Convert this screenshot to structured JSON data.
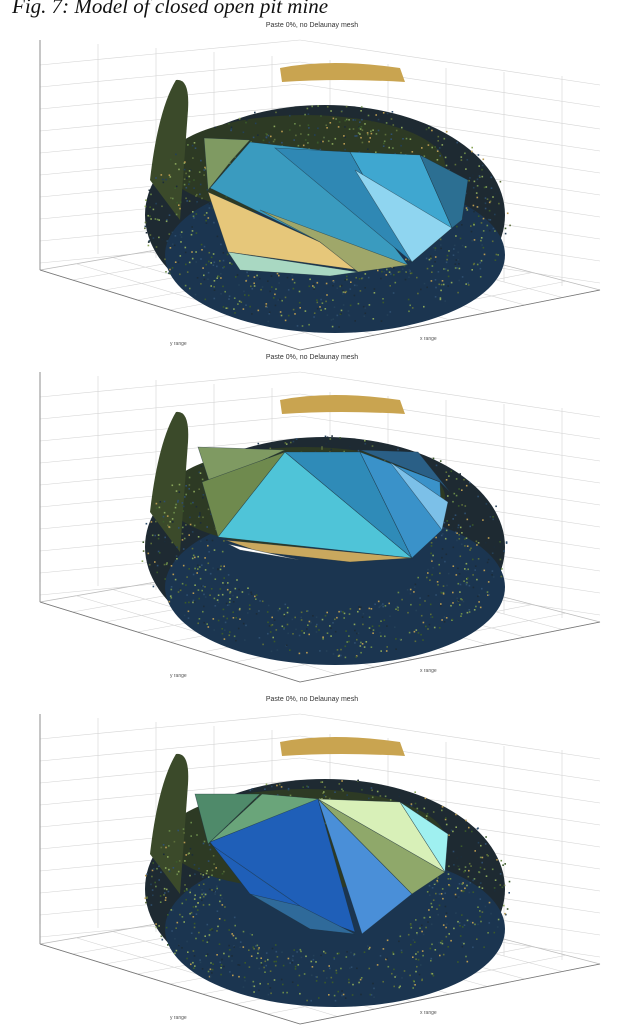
{
  "caption": "Fig. 7: Model of closed open pit mine",
  "figures": [
    {
      "title": "Paste 0%, no Delaunay mesh",
      "zticks": [
        "",
        "",
        "",
        "",
        "",
        "",
        "",
        "",
        "",
        ""
      ],
      "xticks": [
        "",
        "",
        "",
        "",
        "",
        "",
        ""
      ],
      "yticks": [
        "",
        "",
        "",
        "",
        "",
        ""
      ],
      "xlabel": "x range",
      "ylabel": "y range",
      "facets": [
        {
          "fill": "#7f9a62",
          "pts": [
            [
              204,
              118
            ],
            [
              250,
              120
            ],
            [
              232,
              140
            ],
            [
              208,
              170
            ]
          ]
        },
        {
          "fill": "#3a9bbf",
          "pts": [
            [
              210,
              168
            ],
            [
              250,
              122
            ],
            [
              320,
              130
            ],
            [
              408,
              245
            ],
            [
              320,
              222
            ]
          ]
        },
        {
          "fill": "#2f88b4",
          "pts": [
            [
              275,
              128
            ],
            [
              350,
              132
            ],
            [
              412,
              242
            ]
          ]
        },
        {
          "fill": "#3fa7d0",
          "pts": [
            [
              350,
              132
            ],
            [
              420,
              135
            ],
            [
              452,
              208
            ],
            [
              412,
              242
            ]
          ]
        },
        {
          "fill": "#8fd5f0",
          "pts": [
            [
              355,
              150
            ],
            [
              452,
              208
            ],
            [
              412,
              242
            ]
          ]
        },
        {
          "fill": "#2c6f92",
          "pts": [
            [
              420,
              135
            ],
            [
              468,
              160
            ],
            [
              462,
              200
            ],
            [
              452,
              208
            ]
          ]
        },
        {
          "fill": "#e6c77a",
          "pts": [
            [
              208,
              172
            ],
            [
              320,
              222
            ],
            [
              358,
              250
            ],
            [
              228,
              232
            ]
          ]
        },
        {
          "fill": "#9fa76a",
          "pts": [
            [
              260,
              190
            ],
            [
              408,
              245
            ],
            [
              358,
              252
            ],
            [
              320,
              222
            ]
          ]
        },
        {
          "fill": "#a9d8c2",
          "pts": [
            [
              228,
              232
            ],
            [
              358,
              252
            ],
            [
              330,
              256
            ],
            [
              240,
              250
            ]
          ]
        }
      ]
    },
    {
      "title": "Paste 0%, no Delaunay mesh",
      "zticks": [
        "",
        "",
        "",
        "",
        "",
        "",
        "",
        "",
        "",
        ""
      ],
      "xticks": [
        "",
        "",
        "",
        "",
        "",
        "",
        ""
      ],
      "yticks": [
        "",
        "",
        "",
        "",
        "",
        ""
      ],
      "xlabel": "x range",
      "ylabel": "y range",
      "facets": [
        {
          "fill": "#7f9a62",
          "pts": [
            [
              198,
              95
            ],
            [
              285,
              98
            ],
            [
              210,
              132
            ]
          ]
        },
        {
          "fill": "#6f8a4e",
          "pts": [
            [
              202,
              130
            ],
            [
              285,
              100
            ],
            [
              218,
              185
            ]
          ]
        },
        {
          "fill": "#4fc4d8",
          "pts": [
            [
              218,
              185
            ],
            [
              285,
              100
            ],
            [
              412,
              206
            ]
          ]
        },
        {
          "fill": "#2f8bb8",
          "pts": [
            [
              285,
              100
            ],
            [
              360,
              100
            ],
            [
              412,
              206
            ]
          ]
        },
        {
          "fill": "#3a92c9",
          "pts": [
            [
              360,
              100
            ],
            [
              440,
              130
            ],
            [
              442,
              178
            ],
            [
              412,
              206
            ]
          ]
        },
        {
          "fill": "#7cc0e8",
          "pts": [
            [
              390,
              110
            ],
            [
              448,
              150
            ],
            [
              442,
              178
            ]
          ]
        },
        {
          "fill": "#2a5f86",
          "pts": [
            [
              360,
              98
            ],
            [
              418,
              100
            ],
            [
              450,
              140
            ],
            [
              440,
              130
            ]
          ]
        },
        {
          "fill": "#c9a85e",
          "pts": [
            [
              225,
              188
            ],
            [
              412,
              206
            ],
            [
              350,
              210
            ],
            [
              260,
              200
            ]
          ]
        },
        {
          "fill": "#ffffff",
          "pts": [
            [
              228,
              192
            ],
            [
              300,
              208
            ],
            [
              240,
              198
            ]
          ]
        }
      ]
    },
    {
      "title": "Paste 0%, no Delaunay mesh",
      "zticks": [
        "",
        "",
        "",
        "",
        "",
        "",
        "",
        "",
        "",
        ""
      ],
      "xticks": [
        "",
        "",
        "",
        "",
        "",
        "",
        ""
      ],
      "yticks": [
        "",
        "",
        "",
        "",
        "",
        ""
      ],
      "xlabel": "x range",
      "ylabel": "y range",
      "facets": [
        {
          "fill": "#4f8a6a",
          "pts": [
            [
              195,
              100
            ],
            [
              260,
              100
            ],
            [
              208,
              150
            ]
          ]
        },
        {
          "fill": "#6aa57a",
          "pts": [
            [
              210,
              148
            ],
            [
              262,
              100
            ],
            [
              320,
              105
            ]
          ]
        },
        {
          "fill": "#1f5fb8",
          "pts": [
            [
              210,
              148
            ],
            [
              318,
              105
            ],
            [
              355,
              238
            ],
            [
              250,
              200
            ]
          ]
        },
        {
          "fill": "#4a8fd8",
          "pts": [
            [
              318,
              105
            ],
            [
              412,
              200
            ],
            [
              362,
              240
            ]
          ]
        },
        {
          "fill": "#8fa86a",
          "pts": [
            [
              318,
              105
            ],
            [
              445,
              178
            ],
            [
              412,
              200
            ]
          ]
        },
        {
          "fill": "#d8f0b8",
          "pts": [
            [
              318,
              105
            ],
            [
              400,
              108
            ],
            [
              445,
              178
            ]
          ]
        },
        {
          "fill": "#9ff0f0",
          "pts": [
            [
              400,
              108
            ],
            [
              448,
              140
            ],
            [
              445,
              178
            ]
          ]
        },
        {
          "fill": "#3a7fb0",
          "pts": [
            [
              210,
              150
            ],
            [
              275,
              195
            ],
            [
              300,
              212
            ]
          ]
        },
        {
          "fill": "#2f6a9a",
          "pts": [
            [
              250,
              200
            ],
            [
              300,
              212
            ],
            [
              355,
              240
            ],
            [
              310,
              235
            ]
          ]
        }
      ]
    }
  ]
}
